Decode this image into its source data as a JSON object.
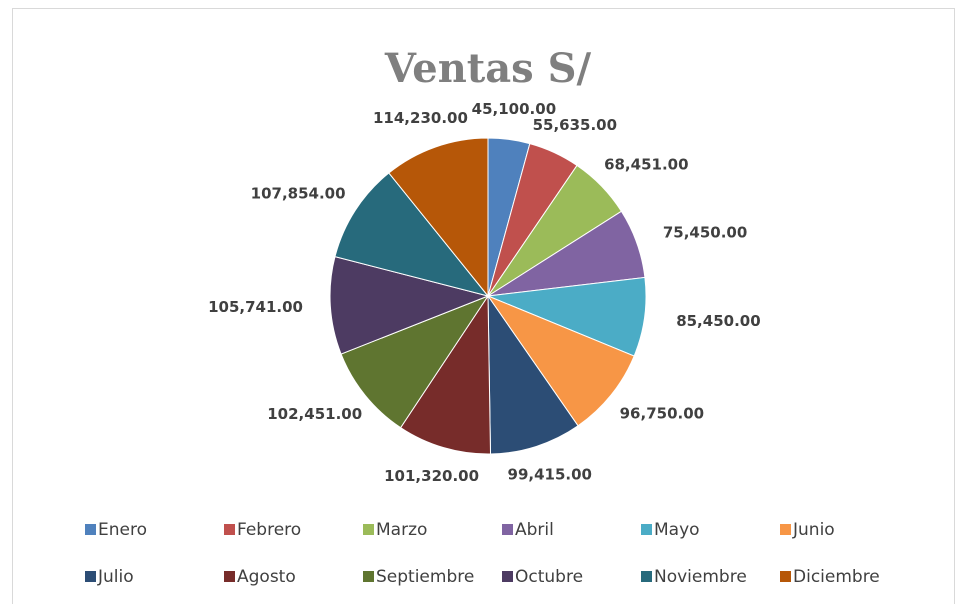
{
  "chart_data": {
    "type": "pie",
    "title": "Ventas S/",
    "categories": [
      "Enero",
      "Febrero",
      "Marzo",
      "Abril",
      "Mayo",
      "Junio",
      "Julio",
      "Agosto",
      "Septiembre",
      "Octubre",
      "Noviembre",
      "Diciembre"
    ],
    "values": [
      45100,
      55635,
      68451,
      75450,
      85450,
      96750,
      99415,
      101320,
      102451,
      105741,
      107854,
      114230
    ],
    "value_labels": [
      "45,100.00",
      "55,635.00",
      "68,451.00",
      "75,450.00",
      "85,450.00",
      "96,750.00",
      "99,415.00",
      "101,320.00",
      "102,451.00",
      "105,741.00",
      "107,854.00",
      "114,230.00"
    ],
    "colors": [
      "#4f81bd",
      "#c0504d",
      "#9bbb59",
      "#8064a2",
      "#4bacc6",
      "#f79646",
      "#2c4d75",
      "#772c2a",
      "#5f7530",
      "#4d3b62",
      "#276a7c",
      "#b65708"
    ],
    "legend": "bottom"
  }
}
